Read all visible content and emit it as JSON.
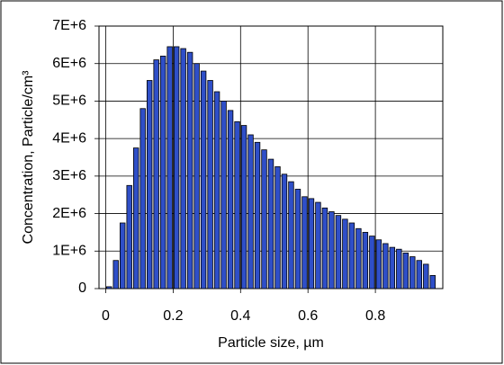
{
  "chart_data": {
    "type": "bar",
    "x_label": "Particle size, µm",
    "y_label": "Concentration, Particle/cm³",
    "x": [
      0.01,
      0.03,
      0.05,
      0.07,
      0.09,
      0.11,
      0.13,
      0.15,
      0.17,
      0.19,
      0.21,
      0.23,
      0.25,
      0.27,
      0.29,
      0.31,
      0.33,
      0.35,
      0.37,
      0.39,
      0.41,
      0.43,
      0.45,
      0.47,
      0.49,
      0.51,
      0.53,
      0.55,
      0.57,
      0.59,
      0.61,
      0.63,
      0.65,
      0.67,
      0.69,
      0.71,
      0.73,
      0.75,
      0.77,
      0.79,
      0.81,
      0.83,
      0.85,
      0.87,
      0.89,
      0.91,
      0.93,
      0.95,
      0.97
    ],
    "values": [
      50000,
      750000,
      1750000,
      2750000,
      3750000,
      4800000,
      5550000,
      6100000,
      6200000,
      6450000,
      6450000,
      6400000,
      6300000,
      6000000,
      5800000,
      5550000,
      5250000,
      5000000,
      4750000,
      4450000,
      4350000,
      4100000,
      3900000,
      3700000,
      3450000,
      3250000,
      3050000,
      2850000,
      2650000,
      2450000,
      2400000,
      2300000,
      2150000,
      2050000,
      1950000,
      1850000,
      1750000,
      1600000,
      1500000,
      1400000,
      1300000,
      1200000,
      1100000,
      1050000,
      950000,
      850000,
      750000,
      650000,
      350000
    ],
    "color": "#2f4fc8",
    "xlim": [
      -0.02,
      1.0
    ],
    "xticks": [
      0,
      0.2,
      0.4,
      0.6,
      0.8
    ],
    "ylim": [
      0,
      7000000
    ],
    "yticks": [
      0,
      {
        "value": 1000000,
        "label": "1E+6"
      },
      {
        "value": 2000000,
        "label": "2E+6"
      },
      {
        "value": 3000000,
        "label": "3E+6"
      },
      {
        "value": 4000000,
        "label": "4E+6"
      },
      {
        "value": 5000000,
        "label": "5E+6"
      },
      {
        "value": 6000000,
        "label": "6E+6"
      },
      {
        "value": 7000000,
        "label": "7E+6"
      }
    ],
    "grid": true
  }
}
